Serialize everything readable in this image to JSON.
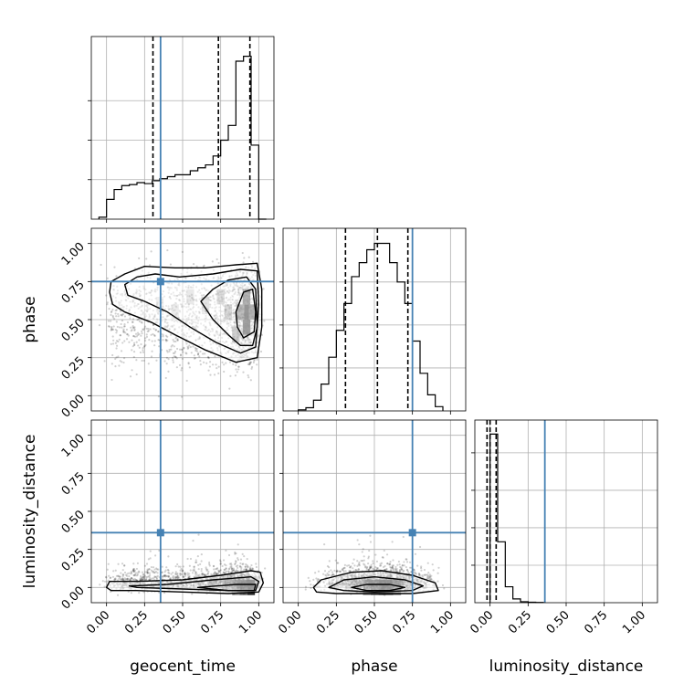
{
  "chart_data": {
    "type": "corner",
    "parameters": [
      {
        "key": "geocent_time",
        "label": "geocent_time",
        "truth": 0.355,
        "quantiles": [
          0.305,
          0.735,
          0.942
        ]
      },
      {
        "key": "phase",
        "label": "phase",
        "truth": 0.75,
        "quantiles": [
          0.31,
          0.52,
          0.72
        ]
      },
      {
        "key": "luminosity_distance",
        "label": "luminosity_distance",
        "truth": 0.36,
        "quantiles": [
          -0.02,
          0.0,
          0.04
        ]
      }
    ],
    "axis_range": [
      -0.1,
      1.1
    ],
    "ticks": [
      "0.00",
      "0.25",
      "0.50",
      "0.75",
      "1.00"
    ],
    "tick_values": [
      0,
      0.25,
      0.5,
      0.75,
      1.0
    ],
    "grid": true,
    "truth_color": "#4682b4",
    "quantile_color": "#000000",
    "histograms": {
      "geocent_time": {
        "edges": [
          -0.05,
          0.0,
          0.05,
          0.1,
          0.15,
          0.2,
          0.25,
          0.3,
          0.35,
          0.4,
          0.45,
          0.5,
          0.55,
          0.6,
          0.65,
          0.7,
          0.75,
          0.8,
          0.85,
          0.9,
          0.95,
          1.0,
          1.05
        ],
        "counts": [
          2,
          20,
          30,
          34,
          35,
          37,
          36,
          39,
          41,
          43,
          45,
          45,
          49,
          52,
          55,
          64,
          80,
          95,
          160,
          165,
          75,
          0
        ]
      },
      "phase": {
        "edges": [
          0.0,
          0.05,
          0.1,
          0.15,
          0.2,
          0.25,
          0.3,
          0.35,
          0.4,
          0.45,
          0.5,
          0.55,
          0.6,
          0.65,
          0.7,
          0.75,
          0.8,
          0.85,
          0.9,
          0.95
        ],
        "counts": [
          1,
          3,
          10,
          25,
          50,
          75,
          100,
          125,
          138,
          150,
          156,
          156,
          138,
          120,
          100,
          65,
          35,
          15,
          4
        ]
      },
      "luminosity_distance": {
        "edges": [
          0.0,
          0.05,
          0.1,
          0.15,
          0.2,
          0.25,
          0.3,
          0.35
        ],
        "counts": [
          180,
          65,
          17,
          4,
          1,
          0.5,
          0.3
        ]
      }
    },
    "ylim_hist": {
      "geocent_time": [
        0,
        185
      ],
      "phase": [
        0,
        170
      ],
      "luminosity_distance": [
        0,
        195
      ]
    },
    "hist_yticks": {
      "geocent_time": [
        40,
        80,
        120
      ],
      "phase": [
        40,
        80,
        120
      ],
      "luminosity_distance": [
        40,
        80,
        120,
        160
      ]
    },
    "contour_panels": [
      {
        "x": "geocent_time",
        "y": "phase",
        "contours": [
          [
            [
              0.02,
              0.68
            ],
            [
              0.03,
              0.75
            ],
            [
              0.12,
              0.8
            ],
            [
              0.25,
              0.85
            ],
            [
              0.45,
              0.84
            ],
            [
              0.65,
              0.84
            ],
            [
              0.85,
              0.86
            ],
            [
              0.99,
              0.87
            ],
            [
              1.02,
              0.7
            ],
            [
              1.02,
              0.45
            ],
            [
              0.99,
              0.25
            ],
            [
              0.85,
              0.22
            ],
            [
              0.65,
              0.3
            ],
            [
              0.45,
              0.4
            ],
            [
              0.3,
              0.48
            ],
            [
              0.12,
              0.55
            ],
            [
              0.04,
              0.6
            ]
          ],
          [
            [
              0.12,
              0.73
            ],
            [
              0.2,
              0.78
            ],
            [
              0.32,
              0.8
            ],
            [
              0.48,
              0.78
            ],
            [
              0.7,
              0.8
            ],
            [
              0.88,
              0.83
            ],
            [
              0.99,
              0.82
            ],
            [
              1.0,
              0.6
            ],
            [
              0.98,
              0.32
            ],
            [
              0.88,
              0.28
            ],
            [
              0.72,
              0.35
            ],
            [
              0.55,
              0.45
            ],
            [
              0.4,
              0.55
            ],
            [
              0.25,
              0.62
            ],
            [
              0.14,
              0.66
            ]
          ],
          [
            [
              0.62,
              0.62
            ],
            [
              0.7,
              0.7
            ],
            [
              0.8,
              0.76
            ],
            [
              0.92,
              0.78
            ],
            [
              0.98,
              0.7
            ],
            [
              0.99,
              0.45
            ],
            [
              0.96,
              0.33
            ],
            [
              0.88,
              0.33
            ],
            [
              0.8,
              0.4
            ],
            [
              0.7,
              0.5
            ]
          ],
          [
            [
              0.85,
              0.55
            ],
            [
              0.9,
              0.68
            ],
            [
              0.96,
              0.7
            ],
            [
              0.98,
              0.55
            ],
            [
              0.97,
              0.42
            ],
            [
              0.9,
              0.38
            ],
            [
              0.86,
              0.45
            ]
          ]
        ],
        "heat_cells": [
          {
            "x": 0.92,
            "y": 0.55,
            "v": 0.95
          },
          {
            "x": 0.92,
            "y": 0.45,
            "v": 0.85
          },
          {
            "x": 0.92,
            "y": 0.65,
            "v": 0.7
          },
          {
            "x": 0.88,
            "y": 0.55,
            "v": 0.6
          },
          {
            "x": 0.96,
            "y": 0.55,
            "v": 0.7
          },
          {
            "x": 0.85,
            "y": 0.4,
            "v": 0.45
          },
          {
            "x": 0.8,
            "y": 0.55,
            "v": 0.35
          },
          {
            "x": 0.75,
            "y": 0.65,
            "v": 0.3
          },
          {
            "x": 0.65,
            "y": 0.6,
            "v": 0.25
          },
          {
            "x": 0.55,
            "y": 0.65,
            "v": 0.2
          },
          {
            "x": 0.45,
            "y": 0.55,
            "v": 0.18
          },
          {
            "x": 0.35,
            "y": 0.6,
            "v": 0.15
          }
        ]
      },
      {
        "x": "geocent_time",
        "y": "luminosity_distance",
        "contours": [
          [
            [
              0.0,
              0.0
            ],
            [
              0.02,
              0.04
            ],
            [
              0.2,
              0.04
            ],
            [
              0.5,
              0.05
            ],
            [
              0.75,
              0.08
            ],
            [
              0.95,
              0.11
            ],
            [
              1.01,
              0.1
            ],
            [
              1.03,
              0.03
            ],
            [
              1.0,
              -0.03
            ],
            [
              0.8,
              -0.04
            ],
            [
              0.5,
              -0.03
            ],
            [
              0.2,
              -0.02
            ],
            [
              0.03,
              -0.02
            ]
          ],
          [
            [
              0.15,
              0.01
            ],
            [
              0.4,
              0.02
            ],
            [
              0.7,
              0.05
            ],
            [
              0.95,
              0.07
            ],
            [
              1.0,
              0.04
            ],
            [
              0.98,
              -0.02
            ],
            [
              0.8,
              -0.02
            ],
            [
              0.5,
              -0.01
            ],
            [
              0.2,
              0.0
            ]
          ],
          [
            [
              0.6,
              0.0
            ],
            [
              0.85,
              0.02
            ],
            [
              0.98,
              0.02
            ],
            [
              0.97,
              -0.02
            ],
            [
              0.8,
              -0.02
            ]
          ]
        ],
        "heat_cells": [
          {
            "x": 0.95,
            "y": 0.0,
            "v": 0.9
          },
          {
            "x": 0.9,
            "y": 0.0,
            "v": 0.7
          },
          {
            "x": 0.85,
            "y": 0.0,
            "v": 0.5
          },
          {
            "x": 0.8,
            "y": 0.02,
            "v": 0.35
          },
          {
            "x": 0.7,
            "y": 0.02,
            "v": 0.25
          }
        ]
      },
      {
        "x": "phase",
        "y": "luminosity_distance",
        "contours": [
          [
            [
              0.1,
              0.0
            ],
            [
              0.15,
              0.05
            ],
            [
              0.35,
              0.1
            ],
            [
              0.55,
              0.11
            ],
            [
              0.75,
              0.08
            ],
            [
              0.9,
              0.03
            ],
            [
              0.92,
              -0.02
            ],
            [
              0.75,
              -0.04
            ],
            [
              0.5,
              -0.04
            ],
            [
              0.25,
              -0.04
            ],
            [
              0.12,
              -0.03
            ]
          ],
          [
            [
              0.2,
              0.0
            ],
            [
              0.3,
              0.05
            ],
            [
              0.5,
              0.07
            ],
            [
              0.7,
              0.05
            ],
            [
              0.82,
              0.01
            ],
            [
              0.75,
              -0.02
            ],
            [
              0.5,
              -0.03
            ],
            [
              0.3,
              -0.02
            ]
          ],
          [
            [
              0.35,
              0.0
            ],
            [
              0.45,
              0.02
            ],
            [
              0.6,
              0.02
            ],
            [
              0.7,
              0.0
            ],
            [
              0.6,
              -0.02
            ],
            [
              0.45,
              -0.02
            ]
          ]
        ],
        "heat_cells": [
          {
            "x": 0.55,
            "y": 0.0,
            "v": 0.85
          },
          {
            "x": 0.6,
            "y": 0.0,
            "v": 0.8
          },
          {
            "x": 0.5,
            "y": 0.0,
            "v": 0.7
          },
          {
            "x": 0.45,
            "y": 0.0,
            "v": 0.5
          },
          {
            "x": 0.65,
            "y": 0.0,
            "v": 0.55
          }
        ]
      }
    ]
  }
}
